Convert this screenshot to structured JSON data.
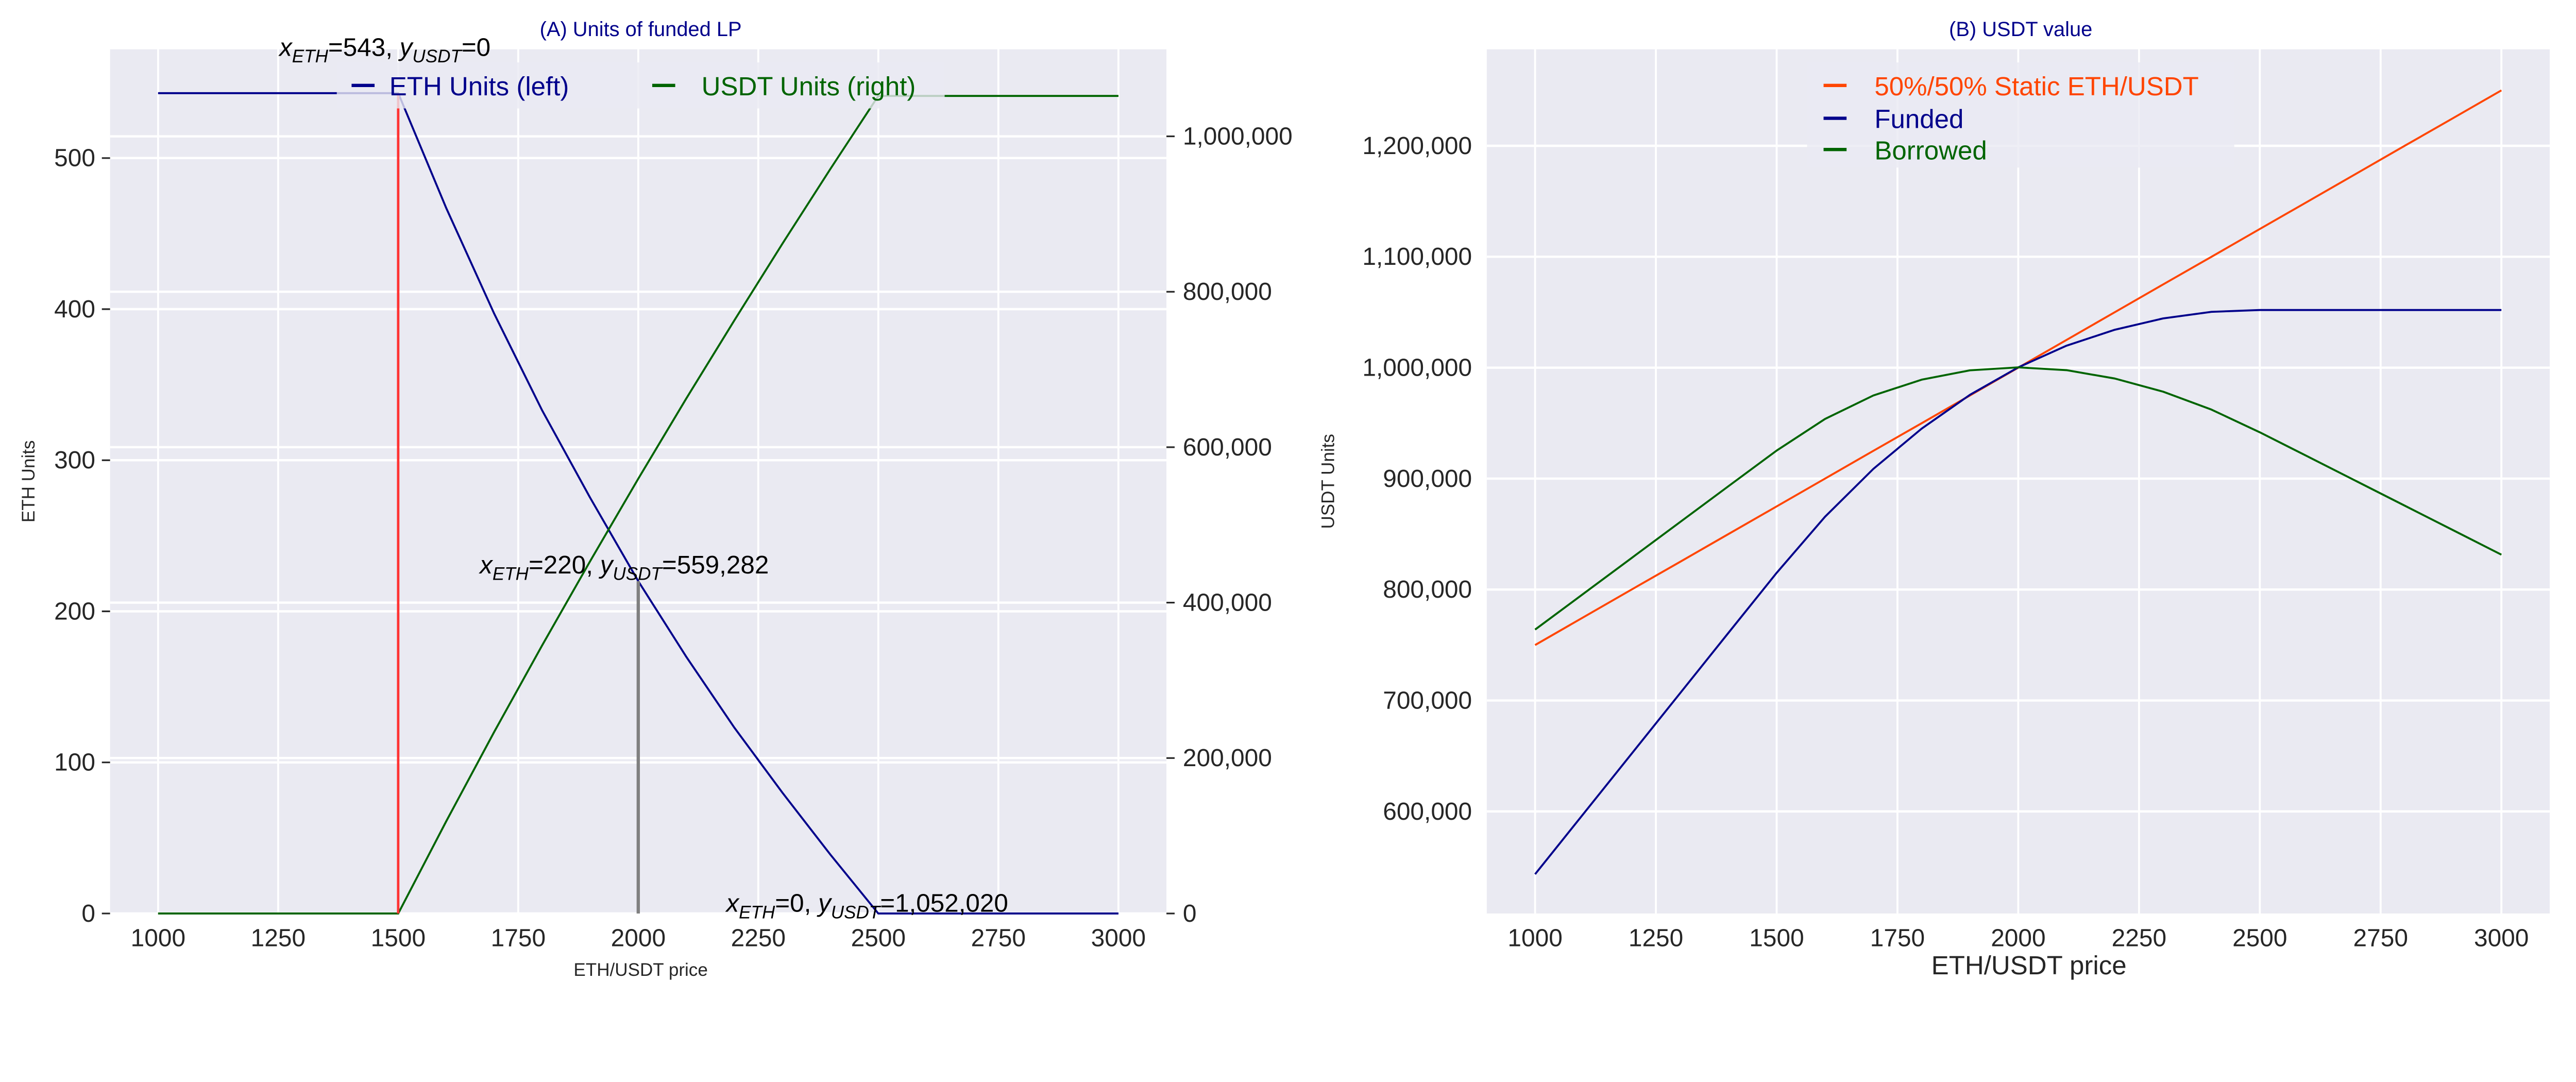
{
  "chart_data": [
    {
      "type": "line",
      "title": "(A) Units of funded LP",
      "xlabel": "ETH/USDT price",
      "ylabel": "ETH Units",
      "ylabel_right": "USDT Units",
      "xlim": [
        900,
        3100
      ],
      "ylim": [
        0,
        572
      ],
      "ylim_right": [
        0,
        1112000
      ],
      "grid": true,
      "legend_placement": "top-center",
      "x_ticks": [
        1000,
        1250,
        1500,
        1750,
        2000,
        2250,
        2500,
        2750,
        3000
      ],
      "y_ticks": [
        0,
        100,
        200,
        300,
        400,
        500
      ],
      "y_ticks_right": [
        0,
        200000,
        400000,
        600000,
        800000,
        1000000
      ],
      "y_tick_labels_right": [
        "0",
        "200,000",
        "400,000",
        "600,000",
        "800,000",
        "1,000,000"
      ],
      "x": [
        1000,
        1100,
        1200,
        1300,
        1400,
        1500,
        1600,
        1700,
        1800,
        1900,
        2000,
        2100,
        2200,
        2300,
        2400,
        2500,
        2600,
        2700,
        2800,
        2900,
        3000
      ],
      "series": [
        {
          "name": "ETH Units (left)",
          "axis": "left",
          "color": "#00008b",
          "values": [
            543,
            543,
            543,
            543,
            543,
            543,
            467,
            397,
            333,
            275,
            220,
            170,
            123,
            80,
            39,
            0,
            0,
            0,
            0,
            0,
            0
          ]
        },
        {
          "name": "USDT Units (right)",
          "axis": "right",
          "color": "#006400",
          "values": [
            0,
            0,
            0,
            0,
            0,
            0,
            118580,
            233520,
            345100,
            453680,
            559282,
            662550,
            763210,
            861620,
            957980,
            1052020,
            1052020,
            1052020,
            1052020,
            1052020,
            1052020
          ]
        }
      ],
      "vlines": [
        {
          "x": 1500,
          "ymax": 543,
          "color": "#ff3333"
        },
        {
          "x": 2000,
          "ymax": 220,
          "color": "#808080"
        }
      ],
      "annotations": [
        {
          "x_sub": "ETH",
          "x_val": "=543, ",
          "y_sub": "USDT",
          "y_val": "=0"
        },
        {
          "x_sub": "ETH",
          "x_val": "=220, ",
          "y_sub": "USDT",
          "y_val": "=559,282"
        },
        {
          "x_sub": "ETH",
          "x_val": "=0, ",
          "y_sub": "USDT",
          "y_val": "=1,052,020"
        }
      ]
    },
    {
      "type": "line",
      "title": "(B) USDT value",
      "xlabel": "ETH/USDT price",
      "ylabel": "USDT Units",
      "xlim": [
        900,
        3100
      ],
      "ylim": [
        508000,
        1287000
      ],
      "grid": true,
      "legend_placement": "top-center",
      "x_ticks": [
        1000,
        1250,
        1500,
        1750,
        2000,
        2250,
        2500,
        2750,
        3000
      ],
      "y_ticks": [
        600000,
        700000,
        800000,
        900000,
        1000000,
        1100000,
        1200000
      ],
      "y_tick_labels": [
        "600,000",
        "700,000",
        "800,000",
        "900,000",
        "1,000,000",
        "1,100,000",
        "1,200,000"
      ],
      "x": [
        1000,
        1100,
        1200,
        1300,
        1400,
        1500,
        1600,
        1700,
        1800,
        1900,
        2000,
        2100,
        2200,
        2300,
        2400,
        2500,
        2600,
        2700,
        2800,
        2900,
        3000
      ],
      "series": [
        {
          "name": "50%/50% Static ETH/USDT",
          "color": "#ff4500",
          "values": [
            750000,
            775000,
            800000,
            825000,
            850000,
            875000,
            900000,
            925000,
            950000,
            975000,
            1000000,
            1025000,
            1050000,
            1075000,
            1100000,
            1125000,
            1150000,
            1175000,
            1200000,
            1225000,
            1250000
          ]
        },
        {
          "name": "Funded",
          "color": "#00008b",
          "values": [
            543400,
            597740,
            652080,
            706420,
            760760,
            815100,
            865620,
            908760,
            945040,
            975610,
            1000282,
            1019760,
            1034250,
            1044470,
            1050380,
            1052020,
            1052020,
            1052020,
            1052020,
            1052020,
            1052020
          ]
        },
        {
          "name": "Borrowed",
          "color": "#006400",
          "values": [
            763900,
            796190,
            828480,
            860770,
            893060,
            925350,
            953820,
            974910,
            989140,
            997660,
            1000282,
            997710,
            990150,
            978320,
            962180,
            941770,
            919720,
            897670,
            875620,
            853570,
            831520
          ]
        }
      ]
    }
  ]
}
